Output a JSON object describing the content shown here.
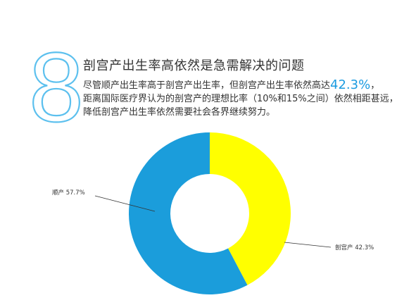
{
  "header": {
    "big_number": "8",
    "title": "剖宫产出生率高依然是急需解决的问题",
    "body_line1_before": "尽管顺产出生率高于剖宫产出生率，但剖宫产出生率依然高达",
    "body_highlight": "42.3%",
    "body_line1_after": "，",
    "body_line2": "距离国际医疗界认为的剖宫产的理想比率（10%和15%之间）依然相距甚远，",
    "body_line3": "降低剖宫产出生率依然需要社会各界继续努力。"
  },
  "colors": {
    "accent": "#1a9be0",
    "shunchan": "#1b9ddb",
    "pougongchan": "#ffff00",
    "number_stroke": "#5cc0ee"
  },
  "chart_data": {
    "type": "pie",
    "donut": true,
    "title": "",
    "slices": [
      {
        "name": "剖宫产",
        "value": 42.3,
        "label": "剖宫产 42.3%",
        "color": "#ffff00"
      },
      {
        "name": "顺产",
        "value": 57.7,
        "label": "顺产 57.7%",
        "color": "#1b9ddb"
      }
    ]
  }
}
